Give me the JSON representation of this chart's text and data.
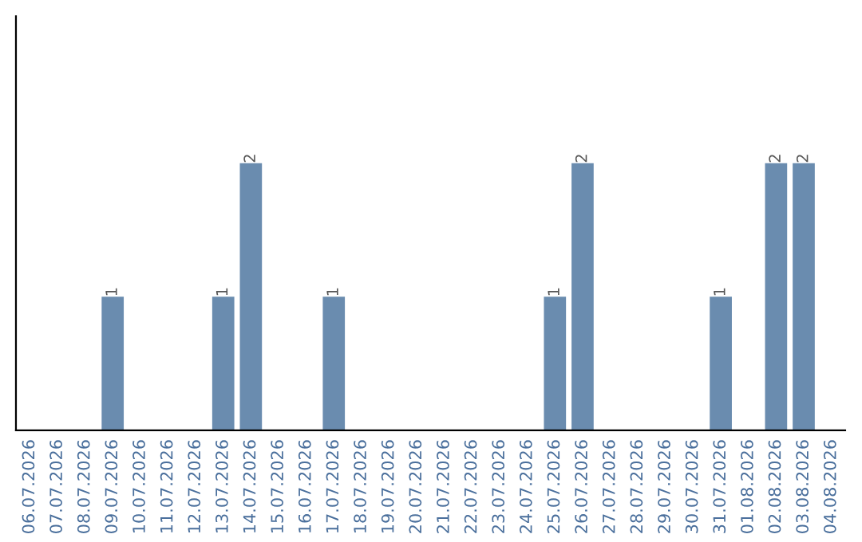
{
  "chart_data": {
    "type": "bar",
    "categories": [
      "06.07.2026",
      "07.07.2026",
      "08.07.2026",
      "09.07.2026",
      "10.07.2026",
      "11.07.2026",
      "12.07.2026",
      "13.07.2026",
      "14.07.2026",
      "15.07.2026",
      "16.07.2026",
      "17.07.2026",
      "18.07.2026",
      "19.07.2026",
      "20.07.2026",
      "21.07.2026",
      "22.07.2026",
      "23.07.2026",
      "24.07.2026",
      "25.07.2026",
      "26.07.2026",
      "27.07.2026",
      "28.07.2026",
      "29.07.2026",
      "30.07.2026",
      "31.07.2026",
      "01.08.2026",
      "02.08.2026",
      "03.08.2026",
      "04.08.2026"
    ],
    "values": [
      0,
      0,
      0,
      1,
      0,
      0,
      0,
      1,
      2,
      0,
      0,
      1,
      0,
      0,
      0,
      0,
      0,
      0,
      0,
      1,
      2,
      0,
      0,
      0,
      0,
      1,
      0,
      2,
      2,
      0
    ],
    "value_labels": [
      null,
      null,
      null,
      "1",
      null,
      null,
      null,
      "1",
      "2",
      null,
      null,
      "1",
      null,
      null,
      null,
      null,
      null,
      null,
      null,
      "1",
      "2",
      null,
      null,
      null,
      null,
      "1",
      null,
      "2",
      "2",
      null
    ],
    "color": "#6a8caf",
    "ylim": [
      0,
      3.1
    ],
    "tick_labels": "x",
    "grid": false,
    "legend": false
  }
}
